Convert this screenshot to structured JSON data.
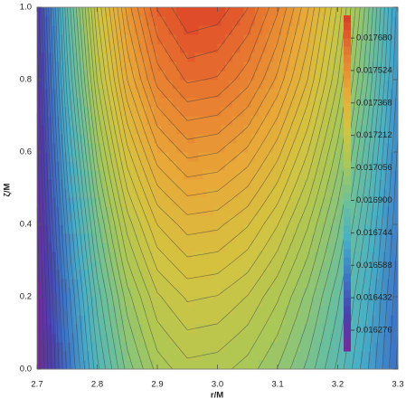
{
  "chart_data": {
    "type": "contour",
    "xlabel": "r/M",
    "ylabel": "ζ/M",
    "x": [
      2.7,
      2.75,
      2.8,
      2.85,
      2.9,
      2.95,
      3.0,
      3.05,
      3.1,
      3.15,
      3.2,
      3.25,
      3.3
    ],
    "y": [
      0,
      0.2,
      0.4,
      0.6,
      0.8,
      1.0
    ],
    "z": [
      [
        0.0162,
        0.016519,
        0.016771,
        0.016955,
        0.017071,
        0.017119,
        0.017111,
        0.017077,
        0.017015,
        0.016927,
        0.016811,
        0.016669,
        0.0165
      ],
      [
        0.01621,
        0.01656,
        0.016837,
        0.017039,
        0.017166,
        0.017219,
        0.01721,
        0.017171,
        0.017101,
        0.017002,
        0.016871,
        0.01671,
        0.01652
      ],
      [
        0.01623,
        0.016619,
        0.016926,
        0.01715,
        0.017291,
        0.017348,
        0.017339,
        0.017294,
        0.017214,
        0.0171,
        0.016952,
        0.016768,
        0.01655
      ],
      [
        0.01626,
        0.01669,
        0.01703,
        0.017278,
        0.017434,
        0.017498,
        0.017487,
        0.017436,
        0.017344,
        0.017213,
        0.017042,
        0.01683,
        0.01658
      ],
      [
        0.01629,
        0.016762,
        0.017135,
        0.017407,
        0.017578,
        0.017648,
        0.017636,
        0.017578,
        0.017475,
        0.017329,
        0.017137,
        0.0169,
        0.01662
      ],
      [
        0.01632,
        0.01682,
        0.017214,
        0.017502,
        0.017684,
        0.017758,
        0.017745,
        0.017682,
        0.017571,
        0.017414,
        0.017207,
        0.016952,
        0.01665
      ]
    ],
    "xlim": [
      2.7,
      3.3
    ],
    "ylim": [
      0,
      1.0
    ],
    "xticks": [
      2.7,
      2.8,
      2.9,
      {
        "value": 3.0,
        "label": "3.0"
      },
      3.1,
      3.2,
      3.3
    ],
    "yticks": [
      {
        "value": 0,
        "label": "0.0"
      },
      0.2,
      0.4,
      0.6,
      0.8,
      {
        "value": 1.0,
        "label": "1.0"
      }
    ],
    "zlim": [
      0.016176,
      0.017789
    ],
    "colorbar_ticks": [
      0.016276,
      0.016432,
      0.016588,
      0.016744,
      {
        "value": 0.0169,
        "label": "0.016900"
      },
      0.017056,
      0.017212,
      0.017368,
      0.017524,
      {
        "value": 0.01768,
        "label": "0.017680"
      }
    ],
    "colormap": [
      "#7a2a9a",
      "#4a3fb0",
      "#3e78c8",
      "#48b0c8",
      "#6cc09a",
      "#a8c858",
      "#d4c440",
      "#e8a838",
      "#e87a30",
      "#dc3a28"
    ],
    "contour_lines": true
  }
}
